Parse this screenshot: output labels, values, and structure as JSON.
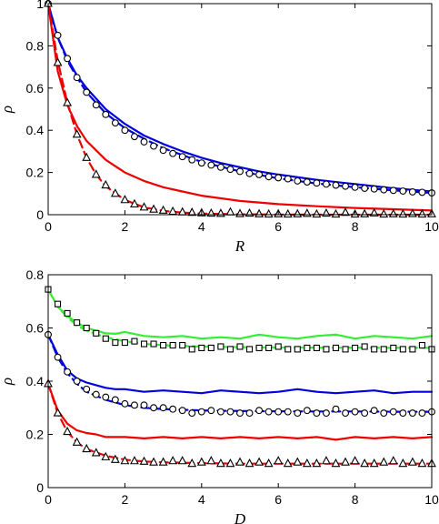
{
  "chart_data": [
    {
      "type": "line",
      "xlabel": "R",
      "ylabel": "ρ",
      "xlim": [
        0,
        10
      ],
      "ylim": [
        0,
        1
      ],
      "xticks": [
        0,
        2,
        4,
        6,
        8,
        10
      ],
      "yticks": [
        0,
        0.2,
        0.4,
        0.6,
        0.8,
        1
      ],
      "xtick_labels": [
        "0",
        "2",
        "4",
        "6",
        "8",
        "10"
      ],
      "ytick_labels": [
        "0",
        "0.2",
        "0.4",
        "0.6",
        "0.8",
        "1"
      ],
      "grid": false,
      "legend": "none",
      "series": [
        {
          "style": "solid",
          "color": "#0000dd",
          "x": [
            0,
            0.25,
            0.5,
            0.75,
            1,
            1.5,
            2,
            2.5,
            3,
            3.5,
            4,
            4.5,
            5,
            5.5,
            6,
            7,
            8,
            9,
            10
          ],
          "y": [
            1.0,
            0.84,
            0.74,
            0.66,
            0.6,
            0.5,
            0.43,
            0.375,
            0.335,
            0.3,
            0.27,
            0.245,
            0.225,
            0.205,
            0.19,
            0.165,
            0.145,
            0.125,
            0.11
          ]
        },
        {
          "style": "solid",
          "color": "#ee0000",
          "x": [
            0,
            0.25,
            0.5,
            0.75,
            1,
            1.5,
            2,
            2.5,
            3,
            3.5,
            4,
            5,
            6,
            7,
            8,
            9,
            10
          ],
          "y": [
            1.0,
            0.68,
            0.52,
            0.42,
            0.35,
            0.26,
            0.2,
            0.16,
            0.13,
            0.11,
            0.09,
            0.065,
            0.05,
            0.04,
            0.032,
            0.026,
            0.02
          ]
        },
        {
          "style": "dashed",
          "color": "#0000dd",
          "x": [
            0,
            0.25,
            0.5,
            0.75,
            1,
            1.5,
            2,
            2.5,
            3,
            4,
            5,
            6,
            7,
            8,
            9,
            10
          ],
          "y": [
            1.0,
            0.84,
            0.73,
            0.65,
            0.58,
            0.48,
            0.41,
            0.36,
            0.315,
            0.25,
            0.205,
            0.172,
            0.148,
            0.13,
            0.115,
            0.103
          ]
        },
        {
          "style": "dashed",
          "color": "#ee0000",
          "x": [
            0,
            0.25,
            0.5,
            0.75,
            1,
            1.25,
            1.5,
            2,
            2.5,
            3,
            3.5,
            4,
            5,
            6,
            7,
            8,
            9,
            10
          ],
          "y": [
            1.0,
            0.73,
            0.53,
            0.38,
            0.27,
            0.19,
            0.135,
            0.07,
            0.035,
            0.018,
            0.01,
            0.005,
            0.002,
            0.001,
            0.0005,
            0.0002,
            0.0001,
            0
          ]
        },
        {
          "style": "markers",
          "marker": "circle",
          "x": [
            0,
            0.25,
            0.5,
            0.75,
            1,
            1.25,
            1.5,
            1.75,
            2,
            2.25,
            2.5,
            2.75,
            3,
            3.25,
            3.5,
            3.75,
            4,
            4.25,
            4.5,
            4.75,
            5,
            5.25,
            5.5,
            5.75,
            6,
            6.25,
            6.5,
            6.75,
            7,
            7.25,
            7.5,
            7.75,
            8,
            8.25,
            8.5,
            8.75,
            9,
            9.25,
            9.5,
            9.75,
            10
          ],
          "y": [
            1.0,
            0.85,
            0.74,
            0.65,
            0.58,
            0.52,
            0.475,
            0.435,
            0.4,
            0.37,
            0.345,
            0.325,
            0.305,
            0.29,
            0.275,
            0.26,
            0.245,
            0.235,
            0.225,
            0.215,
            0.205,
            0.195,
            0.19,
            0.18,
            0.175,
            0.17,
            0.16,
            0.155,
            0.15,
            0.145,
            0.14,
            0.135,
            0.13,
            0.125,
            0.122,
            0.118,
            0.115,
            0.112,
            0.108,
            0.106,
            0.103
          ]
        },
        {
          "style": "markers",
          "marker": "triangle",
          "x": [
            0,
            0.25,
            0.5,
            0.75,
            1,
            1.25,
            1.5,
            1.75,
            2,
            2.25,
            2.5,
            2.75,
            3,
            3.25,
            3.5,
            3.75,
            4,
            4.25,
            4.5,
            4.75,
            5,
            5.25,
            5.5,
            5.75,
            6,
            6.25,
            6.5,
            6.75,
            7,
            7.25,
            7.5,
            7.75,
            8,
            8.25,
            8.5,
            8.75,
            9,
            9.25,
            9.5,
            9.75,
            10
          ],
          "y": [
            1.0,
            0.72,
            0.53,
            0.38,
            0.27,
            0.19,
            0.14,
            0.1,
            0.07,
            0.05,
            0.035,
            0.025,
            0.02,
            0.015,
            0.012,
            0.01,
            0.008,
            0.006,
            0.005,
            0.012,
            0.004,
            0.006,
            0.003,
            0.002,
            0.003,
            0.002,
            0.003,
            0.005,
            0.002,
            0.006,
            0.002,
            0.01,
            0.002,
            0.003,
            0.007,
            0.002,
            0.003,
            0.002,
            0.004,
            0.002,
            0.003
          ]
        }
      ]
    },
    {
      "type": "line",
      "xlabel": "D",
      "ylabel": "ρ",
      "xlim": [
        0,
        10
      ],
      "ylim": [
        0,
        0.8
      ],
      "xticks": [
        0,
        2,
        4,
        6,
        8,
        10
      ],
      "yticks": [
        0,
        0.2,
        0.4,
        0.6,
        0.8
      ],
      "xtick_labels": [
        "0",
        "2",
        "4",
        "6",
        "8",
        "10"
      ],
      "ytick_labels": [
        "0",
        "0.2",
        "0.4",
        "0.6",
        "0.8"
      ],
      "grid": false,
      "legend": "none",
      "series": [
        {
          "style": "solid",
          "color": "#33ee33",
          "x": [
            0,
            0.25,
            0.5,
            0.75,
            1,
            1.25,
            1.5,
            1.75,
            2,
            2.5,
            3,
            3.5,
            4,
            4.5,
            5,
            5.5,
            6,
            6.5,
            7,
            7.5,
            8,
            8.5,
            9,
            9.5,
            10
          ],
          "y": [
            0.745,
            0.68,
            0.645,
            0.62,
            0.6,
            0.59,
            0.58,
            0.578,
            0.585,
            0.57,
            0.565,
            0.57,
            0.56,
            0.565,
            0.56,
            0.575,
            0.565,
            0.56,
            0.57,
            0.575,
            0.56,
            0.57,
            0.565,
            0.56,
            0.57
          ]
        },
        {
          "style": "solid",
          "color": "#0000dd",
          "x": [
            0,
            0.25,
            0.5,
            0.75,
            1,
            1.25,
            1.5,
            1.75,
            2,
            2.5,
            3,
            3.5,
            4,
            4.5,
            5,
            5.5,
            6,
            6.5,
            7,
            7.5,
            8,
            8.5,
            9,
            9.5,
            10
          ],
          "y": [
            0.575,
            0.5,
            0.44,
            0.41,
            0.395,
            0.385,
            0.375,
            0.37,
            0.37,
            0.36,
            0.365,
            0.36,
            0.355,
            0.365,
            0.36,
            0.355,
            0.36,
            0.37,
            0.36,
            0.355,
            0.36,
            0.365,
            0.355,
            0.36,
            0.36
          ]
        },
        {
          "style": "solid",
          "color": "#ee0000",
          "x": [
            0,
            0.25,
            0.5,
            0.75,
            1,
            1.25,
            1.5,
            1.75,
            2,
            2.5,
            3,
            3.5,
            4,
            4.5,
            5,
            5.5,
            6,
            6.5,
            7,
            7.5,
            8,
            8.5,
            9,
            9.5,
            10
          ],
          "y": [
            0.39,
            0.29,
            0.24,
            0.215,
            0.205,
            0.2,
            0.19,
            0.19,
            0.19,
            0.185,
            0.19,
            0.185,
            0.19,
            0.185,
            0.19,
            0.185,
            0.19,
            0.185,
            0.19,
            0.18,
            0.19,
            0.185,
            0.19,
            0.185,
            0.19
          ]
        },
        {
          "style": "dashed",
          "color": "#33ee33",
          "x": [
            0,
            0.25,
            0.5,
            0.75,
            1,
            1.5,
            2,
            2.5,
            3,
            4,
            5,
            6,
            7,
            8,
            9,
            10
          ],
          "y": [
            0.745,
            0.68,
            0.64,
            0.61,
            0.59,
            0.565,
            0.55,
            0.54,
            0.535,
            0.53,
            0.528,
            0.527,
            0.526,
            0.526,
            0.525,
            0.525
          ]
        },
        {
          "style": "dashed",
          "color": "#0000dd",
          "x": [
            0,
            0.25,
            0.5,
            0.75,
            1,
            1.5,
            2,
            2.5,
            3,
            4,
            5,
            6,
            7,
            8,
            9,
            10
          ],
          "y": [
            0.575,
            0.49,
            0.43,
            0.39,
            0.36,
            0.33,
            0.31,
            0.3,
            0.295,
            0.29,
            0.288,
            0.287,
            0.286,
            0.286,
            0.285,
            0.285
          ]
        },
        {
          "style": "dashed",
          "color": "#ee0000",
          "x": [
            0,
            0.25,
            0.5,
            0.75,
            1,
            1.5,
            2,
            2.5,
            3,
            4,
            5,
            6,
            7,
            8,
            9,
            10
          ],
          "y": [
            0.39,
            0.28,
            0.21,
            0.17,
            0.145,
            0.12,
            0.105,
            0.098,
            0.095,
            0.092,
            0.09,
            0.09,
            0.09,
            0.09,
            0.09,
            0.09
          ]
        },
        {
          "style": "markers",
          "marker": "square",
          "x": [
            0,
            0.25,
            0.5,
            0.75,
            1,
            1.25,
            1.5,
            1.75,
            2,
            2.25,
            2.5,
            2.75,
            3,
            3.25,
            3.5,
            3.75,
            4,
            4.25,
            4.5,
            4.75,
            5,
            5.25,
            5.5,
            5.75,
            6,
            6.25,
            6.5,
            6.75,
            7,
            7.25,
            7.5,
            7.75,
            8,
            8.25,
            8.5,
            8.75,
            9,
            9.25,
            9.5,
            9.75,
            10
          ],
          "y": [
            0.745,
            0.69,
            0.655,
            0.62,
            0.6,
            0.58,
            0.56,
            0.545,
            0.545,
            0.55,
            0.54,
            0.54,
            0.535,
            0.535,
            0.535,
            0.52,
            0.525,
            0.525,
            0.53,
            0.52,
            0.53,
            0.52,
            0.525,
            0.525,
            0.53,
            0.52,
            0.52,
            0.525,
            0.525,
            0.52,
            0.525,
            0.52,
            0.525,
            0.53,
            0.52,
            0.52,
            0.525,
            0.52,
            0.52,
            0.535,
            0.52
          ]
        },
        {
          "style": "markers",
          "marker": "circle",
          "x": [
            0,
            0.25,
            0.5,
            0.75,
            1,
            1.25,
            1.5,
            1.75,
            2,
            2.25,
            2.5,
            2.75,
            3,
            3.25,
            3.5,
            3.75,
            4,
            4.25,
            4.5,
            4.75,
            5,
            5.25,
            5.5,
            5.75,
            6,
            6.25,
            6.5,
            6.75,
            7,
            7.25,
            7.5,
            7.75,
            8,
            8.25,
            8.5,
            8.75,
            9,
            9.25,
            9.5,
            9.75,
            10
          ],
          "y": [
            0.575,
            0.49,
            0.435,
            0.4,
            0.37,
            0.35,
            0.34,
            0.33,
            0.315,
            0.31,
            0.31,
            0.3,
            0.3,
            0.295,
            0.29,
            0.28,
            0.285,
            0.29,
            0.285,
            0.285,
            0.28,
            0.28,
            0.29,
            0.285,
            0.285,
            0.285,
            0.28,
            0.29,
            0.28,
            0.28,
            0.295,
            0.28,
            0.285,
            0.28,
            0.29,
            0.28,
            0.285,
            0.28,
            0.28,
            0.28,
            0.285
          ]
        },
        {
          "style": "markers",
          "marker": "triangle",
          "x": [
            0,
            0.25,
            0.5,
            0.75,
            1,
            1.25,
            1.5,
            1.75,
            2,
            2.25,
            2.5,
            2.75,
            3,
            3.25,
            3.5,
            3.75,
            4,
            4.25,
            4.5,
            4.75,
            5,
            5.25,
            5.5,
            5.75,
            6,
            6.25,
            6.5,
            6.75,
            7,
            7.25,
            7.5,
            7.75,
            8,
            8.25,
            8.5,
            8.75,
            9,
            9.25,
            9.5,
            9.75,
            10
          ],
          "y": [
            0.39,
            0.28,
            0.21,
            0.17,
            0.145,
            0.13,
            0.115,
            0.105,
            0.1,
            0.1,
            0.098,
            0.095,
            0.095,
            0.1,
            0.1,
            0.09,
            0.095,
            0.1,
            0.09,
            0.09,
            0.095,
            0.09,
            0.095,
            0.09,
            0.1,
            0.09,
            0.095,
            0.09,
            0.09,
            0.1,
            0.09,
            0.095,
            0.1,
            0.09,
            0.09,
            0.095,
            0.1,
            0.09,
            0.095,
            0.09,
            0.09
          ]
        }
      ]
    }
  ]
}
